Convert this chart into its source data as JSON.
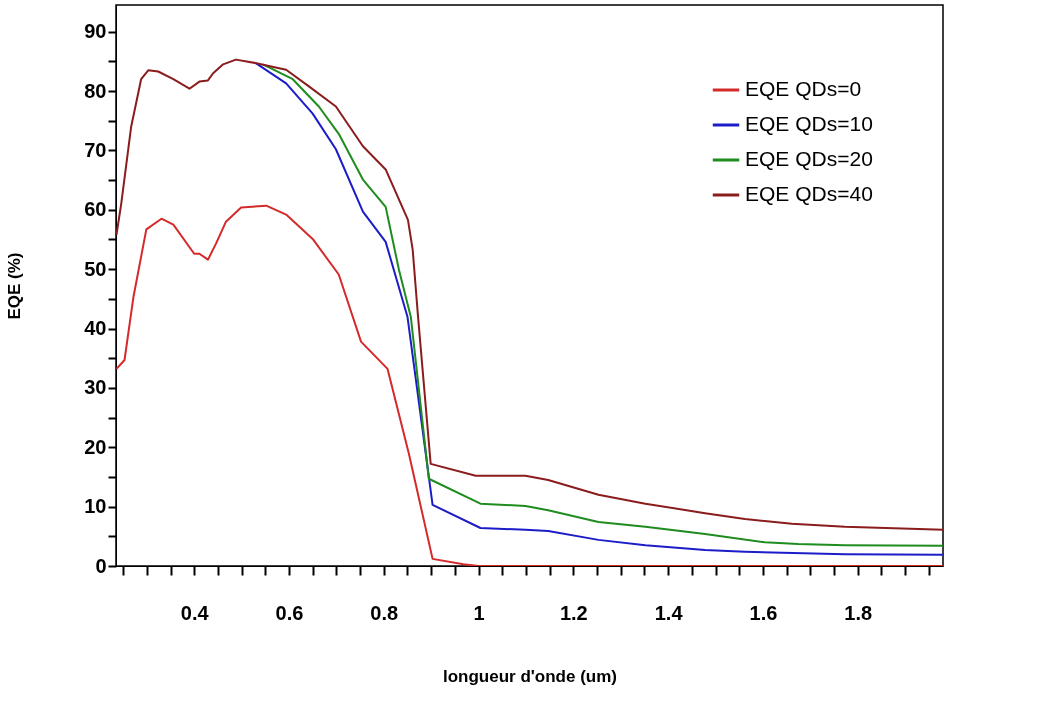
{
  "chart_data": {
    "type": "line",
    "xlabel": "longueur d'onde (um)",
    "ylabel": "EQE (%)",
    "xlim": [
      0.235,
      1.98
    ],
    "ylim": [
      0,
      94.5
    ],
    "xticks": [
      {
        "value": 0.25,
        "label": null
      },
      {
        "value": 0.3,
        "label": null
      },
      {
        "value": 0.35,
        "label": null
      },
      {
        "value": 0.4,
        "label": "0.4"
      },
      {
        "value": 0.45,
        "label": null
      },
      {
        "value": 0.5,
        "label": null
      },
      {
        "value": 0.55,
        "label": null
      },
      {
        "value": 0.6,
        "label": "0.6"
      },
      {
        "value": 0.65,
        "label": null
      },
      {
        "value": 0.7,
        "label": null
      },
      {
        "value": 0.75,
        "label": null
      },
      {
        "value": 0.8,
        "label": "0.8"
      },
      {
        "value": 0.85,
        "label": null
      },
      {
        "value": 0.9,
        "label": null
      },
      {
        "value": 0.95,
        "label": null
      },
      {
        "value": 1,
        "label": "1"
      },
      {
        "value": 1.05,
        "label": null
      },
      {
        "value": 1.1,
        "label": null
      },
      {
        "value": 1.15,
        "label": null
      },
      {
        "value": 1.2,
        "label": "1.2"
      },
      {
        "value": 1.25,
        "label": null
      },
      {
        "value": 1.3,
        "label": null
      },
      {
        "value": 1.35,
        "label": null
      },
      {
        "value": 1.4,
        "label": "1.4"
      },
      {
        "value": 1.45,
        "label": null
      },
      {
        "value": 1.5,
        "label": null
      },
      {
        "value": 1.55,
        "label": null
      },
      {
        "value": 1.6,
        "label": "1.6"
      },
      {
        "value": 1.65,
        "label": null
      },
      {
        "value": 1.7,
        "label": null
      },
      {
        "value": 1.75,
        "label": null
      },
      {
        "value": 1.8,
        "label": "1.8"
      },
      {
        "value": 1.85,
        "label": null
      },
      {
        "value": 1.9,
        "label": null
      },
      {
        "value": 1.95,
        "label": null
      }
    ],
    "yticks": [
      0,
      {
        "value": 5,
        "label": null
      },
      10,
      {
        "value": 15,
        "label": null
      },
      20,
      {
        "value": 25,
        "label": null
      },
      30,
      {
        "value": 35,
        "label": null
      },
      40,
      {
        "value": 45,
        "label": null
      },
      50,
      {
        "value": 55,
        "label": null
      },
      60,
      {
        "value": 65,
        "label": null
      },
      70,
      {
        "value": 75,
        "label": null
      },
      80,
      {
        "value": 85,
        "label": null
      },
      90
    ],
    "grid": false,
    "legend": "top right",
    "marker": "none",
    "line_style": "solid",
    "series": [
      {
        "name": "EQE QDs=0",
        "color": "#d42a2a",
        "x": [
          0.236,
          0.253,
          0.272,
          0.299,
          0.331,
          0.356,
          0.4,
          0.411,
          0.429,
          0.446,
          0.467,
          0.499,
          0.552,
          0.594,
          0.65,
          0.705,
          0.752,
          0.808,
          0.853,
          0.903,
          0.968,
          1.0,
          1.98
        ],
        "values": [
          33.2,
          34.7,
          45.4,
          56.7,
          58.5,
          57.5,
          52.6,
          52.6,
          51.6,
          54.3,
          58.0,
          60.4,
          60.7,
          59.2,
          55.1,
          49.1,
          37.8,
          33.2,
          18.9,
          1.2,
          0.3,
          0,
          0
        ]
      },
      {
        "name": "EQE QDs=10",
        "color": "#1c1cc8",
        "x": [
          0.53,
          0.594,
          0.65,
          0.699,
          0.756,
          0.804,
          0.85,
          0.903,
          1.004,
          1.099,
          1.147,
          1.253,
          1.352,
          1.478,
          1.562,
          1.773,
          1.98
        ],
        "values": [
          84.7,
          81.3,
          76.2,
          70.2,
          59.7,
          54.6,
          42.0,
          10.3,
          6.4,
          6.1,
          5.9,
          4.4,
          3.5,
          2.7,
          2.4,
          2.0,
          1.9
        ]
      },
      {
        "name": "EQE QDs=20",
        "color": "#1e8c1e",
        "x": [
          0.545,
          0.608,
          0.663,
          0.705,
          0.756,
          0.804,
          0.832,
          0.857,
          0.895,
          1.004,
          1.099,
          1.147,
          1.253,
          1.352,
          1.478,
          1.604,
          1.674,
          1.773,
          1.98
        ],
        "values": [
          84.5,
          82.0,
          77.4,
          72.8,
          65.1,
          60.5,
          49.9,
          42.0,
          14.7,
          10.5,
          10.1,
          9.4,
          7.4,
          6.6,
          5.4,
          4.0,
          3.7,
          3.5,
          3.4
        ]
      },
      {
        "name": "EQE QDs=40",
        "color": "#8b1c1c",
        "x": [
          0.236,
          0.246,
          0.267,
          0.288,
          0.303,
          0.324,
          0.356,
          0.39,
          0.411,
          0.429,
          0.44,
          0.461,
          0.488,
          0.531,
          0.594,
          0.642,
          0.699,
          0.756,
          0.804,
          0.851,
          0.861,
          0.872,
          0.899,
          0.994,
          1.099,
          1.147,
          1.253,
          1.352,
          1.478,
          1.562,
          1.661,
          1.773,
          1.98
        ],
        "values": [
          55.8,
          61.0,
          74.0,
          82.0,
          83.5,
          83.3,
          82.0,
          80.4,
          81.6,
          81.8,
          83.0,
          84.5,
          85.3,
          84.7,
          83.6,
          80.8,
          77.4,
          70.7,
          66.8,
          58.3,
          53.3,
          42.3,
          17.2,
          15.2,
          15.2,
          14.5,
          12.0,
          10.5,
          8.9,
          7.9,
          7.1,
          6.6,
          6.1
        ]
      }
    ]
  }
}
